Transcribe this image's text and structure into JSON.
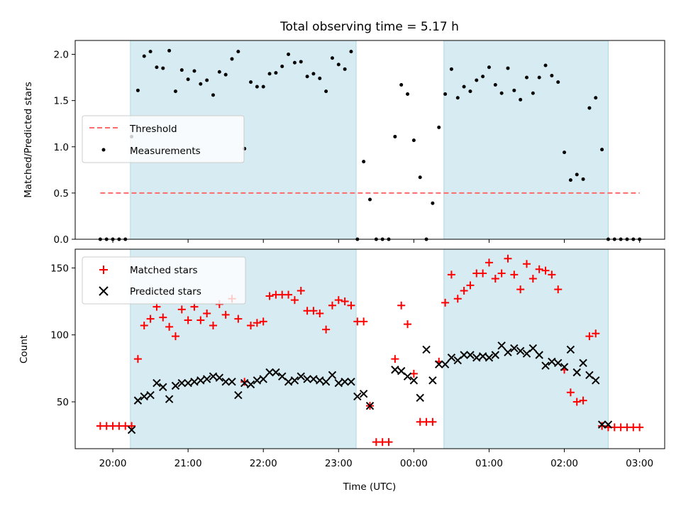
{
  "title": "Total observing time = 5.17 h",
  "chart_data": [
    {
      "type": "scatter",
      "title": "Total observing time = 5.17 h",
      "xlabel": "",
      "ylabel": "Matched/Predicted stars",
      "ylim": [
        0,
        2.15
      ],
      "yticks": [
        "0.0",
        "0.5",
        "1.0",
        "1.5",
        "2.0"
      ],
      "ytick_values": [
        0,
        0.5,
        1.0,
        1.5,
        2.0
      ],
      "threshold": {
        "name": "Threshold",
        "value": 0.5,
        "x_start": "19:50",
        "x_end": "03:00",
        "color": "#ff6b6b"
      },
      "legend_position": "center-left",
      "shaded_intervals": [
        [
          "20:14",
          "23:14"
        ],
        [
          "00:24",
          "02:35"
        ]
      ],
      "series": [
        {
          "name": "Measurements",
          "color": "#000000",
          "x": [
            "19:50",
            "19:55",
            "20:00",
            "20:05",
            "20:10",
            "20:15",
            "20:20",
            "20:25",
            "20:30",
            "20:35",
            "20:40",
            "20:45",
            "20:50",
            "20:55",
            "21:00",
            "21:05",
            "21:10",
            "21:15",
            "21:20",
            "21:25",
            "21:30",
            "21:35",
            "21:40",
            "21:45",
            "21:50",
            "21:55",
            "22:00",
            "22:05",
            "22:10",
            "22:15",
            "22:20",
            "22:25",
            "22:30",
            "22:35",
            "22:40",
            "22:45",
            "22:50",
            "22:55",
            "23:00",
            "23:05",
            "23:10",
            "23:15",
            "23:20",
            "23:25",
            "23:30",
            "23:35",
            "23:40",
            "23:45",
            "23:50",
            "23:55",
            "00:00",
            "00:05",
            "00:10",
            "00:15",
            "00:20",
            "00:25",
            "00:30",
            "00:35",
            "00:40",
            "00:45",
            "00:50",
            "00:55",
            "01:00",
            "01:05",
            "01:10",
            "01:15",
            "01:20",
            "01:25",
            "01:30",
            "01:35",
            "01:40",
            "01:45",
            "01:50",
            "01:55",
            "02:00",
            "02:05",
            "02:10",
            "02:15",
            "02:20",
            "02:25",
            "02:30",
            "02:35",
            "02:40",
            "02:45",
            "02:50",
            "02:55",
            "03:00"
          ],
          "y": [
            0,
            0,
            0,
            0,
            0,
            1.11,
            1.61,
            1.98,
            2.03,
            1.86,
            1.85,
            2.04,
            1.6,
            1.83,
            1.73,
            1.82,
            1.68,
            1.72,
            1.56,
            1.81,
            1.78,
            1.95,
            2.03,
            0.98,
            1.7,
            1.65,
            1.65,
            1.79,
            1.8,
            1.87,
            2.0,
            1.91,
            1.92,
            1.76,
            1.79,
            1.74,
            1.6,
            1.96,
            1.89,
            1.84,
            2.03,
            0,
            0.84,
            0.43,
            0,
            0,
            0,
            1.11,
            1.67,
            1.57,
            1.07,
            0.67,
            0,
            0.39,
            1.21,
            1.57,
            1.84,
            1.53,
            1.65,
            1.6,
            1.72,
            1.76,
            1.86,
            1.67,
            1.58,
            1.85,
            1.61,
            1.51,
            1.75,
            1.58,
            1.75,
            1.88,
            1.77,
            1.7,
            0.94,
            0.64,
            0.7,
            0.65,
            1.42,
            1.53,
            0.97,
            0,
            0,
            0,
            0,
            0,
            0
          ]
        }
      ]
    },
    {
      "type": "scatter",
      "xlabel": "Time (UTC)",
      "ylabel": "Count",
      "ylim": [
        15,
        164
      ],
      "yticks": [
        "50",
        "100",
        "150"
      ],
      "ytick_values": [
        50,
        100,
        150
      ],
      "xticks": [
        "20:00",
        "21:00",
        "22:00",
        "23:00",
        "00:00",
        "01:00",
        "02:00",
        "03:00"
      ],
      "legend_position": "top-left",
      "shaded_intervals": [
        [
          "20:14",
          "23:14"
        ],
        [
          "00:24",
          "02:35"
        ]
      ],
      "series": [
        {
          "name": "Matched stars",
          "color": "#ff0000",
          "marker": "plus",
          "x": [
            "19:50",
            "19:55",
            "20:00",
            "20:05",
            "20:10",
            "20:15",
            "20:20",
            "20:25",
            "20:30",
            "20:35",
            "20:40",
            "20:45",
            "20:50",
            "20:55",
            "21:00",
            "21:05",
            "21:10",
            "21:15",
            "21:20",
            "21:25",
            "21:30",
            "21:35",
            "21:40",
            "21:45",
            "21:50",
            "21:55",
            "22:00",
            "22:05",
            "22:10",
            "22:15",
            "22:20",
            "22:25",
            "22:30",
            "22:35",
            "22:40",
            "22:45",
            "22:50",
            "22:55",
            "23:00",
            "23:05",
            "23:10",
            "23:15",
            "23:20",
            "23:25",
            "23:30",
            "23:35",
            "23:40",
            "23:45",
            "23:50",
            "23:55",
            "00:00",
            "00:05",
            "00:10",
            "00:15",
            "00:20",
            "00:25",
            "00:30",
            "00:35",
            "00:40",
            "00:45",
            "00:50",
            "00:55",
            "01:00",
            "01:05",
            "01:10",
            "01:15",
            "01:20",
            "01:25",
            "01:30",
            "01:35",
            "01:40",
            "01:45",
            "01:50",
            "01:55",
            "02:00",
            "02:05",
            "02:10",
            "02:15",
            "02:20",
            "02:25",
            "02:30",
            "02:35",
            "02:40",
            "02:45",
            "02:50",
            "02:55",
            "03:00"
          ],
          "y": [
            32,
            32,
            32,
            32,
            32,
            32,
            82,
            107,
            112,
            121,
            113,
            106,
            99,
            119,
            111,
            121,
            111,
            116,
            107,
            123,
            115,
            127,
            112,
            65,
            107,
            109,
            110,
            129,
            130,
            130,
            130,
            126,
            133,
            118,
            118,
            116,
            104,
            122,
            126,
            125,
            122,
            110,
            110,
            47,
            20,
            20,
            20,
            82,
            122,
            108,
            71,
            35,
            35,
            35,
            80,
            124,
            145,
            127,
            133,
            137,
            146,
            146,
            154,
            142,
            146,
            157,
            145,
            134,
            153,
            142,
            149,
            148,
            145,
            134,
            74,
            57,
            50,
            51,
            99,
            101,
            32,
            31,
            31,
            31,
            31,
            31,
            31
          ]
        },
        {
          "name": "Predicted stars",
          "color": "#000000",
          "marker": "x",
          "x": [
            "20:15",
            "20:20",
            "20:25",
            "20:30",
            "20:35",
            "20:40",
            "20:45",
            "20:50",
            "20:55",
            "21:00",
            "21:05",
            "21:10",
            "21:15",
            "21:20",
            "21:25",
            "21:30",
            "21:35",
            "21:40",
            "21:45",
            "21:50",
            "21:55",
            "22:00",
            "22:05",
            "22:10",
            "22:15",
            "22:20",
            "22:25",
            "22:30",
            "22:35",
            "22:40",
            "22:45",
            "22:50",
            "22:55",
            "23:00",
            "23:05",
            "23:10",
            "23:15",
            "23:20",
            "23:25",
            "23:45",
            "23:50",
            "23:55",
            "00:00",
            "00:05",
            "00:10",
            "00:15",
            "00:20",
            "00:25",
            "00:30",
            "00:35",
            "00:40",
            "00:45",
            "00:50",
            "00:55",
            "01:00",
            "01:05",
            "01:10",
            "01:15",
            "01:20",
            "01:25",
            "01:30",
            "01:35",
            "01:40",
            "01:45",
            "01:50",
            "01:55",
            "02:00",
            "02:05",
            "02:10",
            "02:15",
            "02:20",
            "02:25",
            "02:30",
            "02:35"
          ],
          "y": [
            29,
            51,
            54,
            55,
            64,
            61,
            52,
            62,
            64,
            64,
            65,
            66,
            67,
            69,
            68,
            65,
            65,
            55,
            64,
            63,
            66,
            67,
            72,
            72,
            69,
            65,
            66,
            69,
            67,
            67,
            66,
            65,
            70,
            64,
            65,
            65,
            54,
            56,
            47,
            74,
            73,
            69,
            66,
            53,
            89,
            66,
            78,
            78,
            83,
            81,
            85,
            85,
            83,
            84,
            83,
            85,
            92,
            87,
            90,
            88,
            86,
            90,
            85,
            77,
            80,
            79,
            76,
            89,
            72,
            79,
            70,
            66,
            33,
            33
          ]
        }
      ]
    }
  ]
}
